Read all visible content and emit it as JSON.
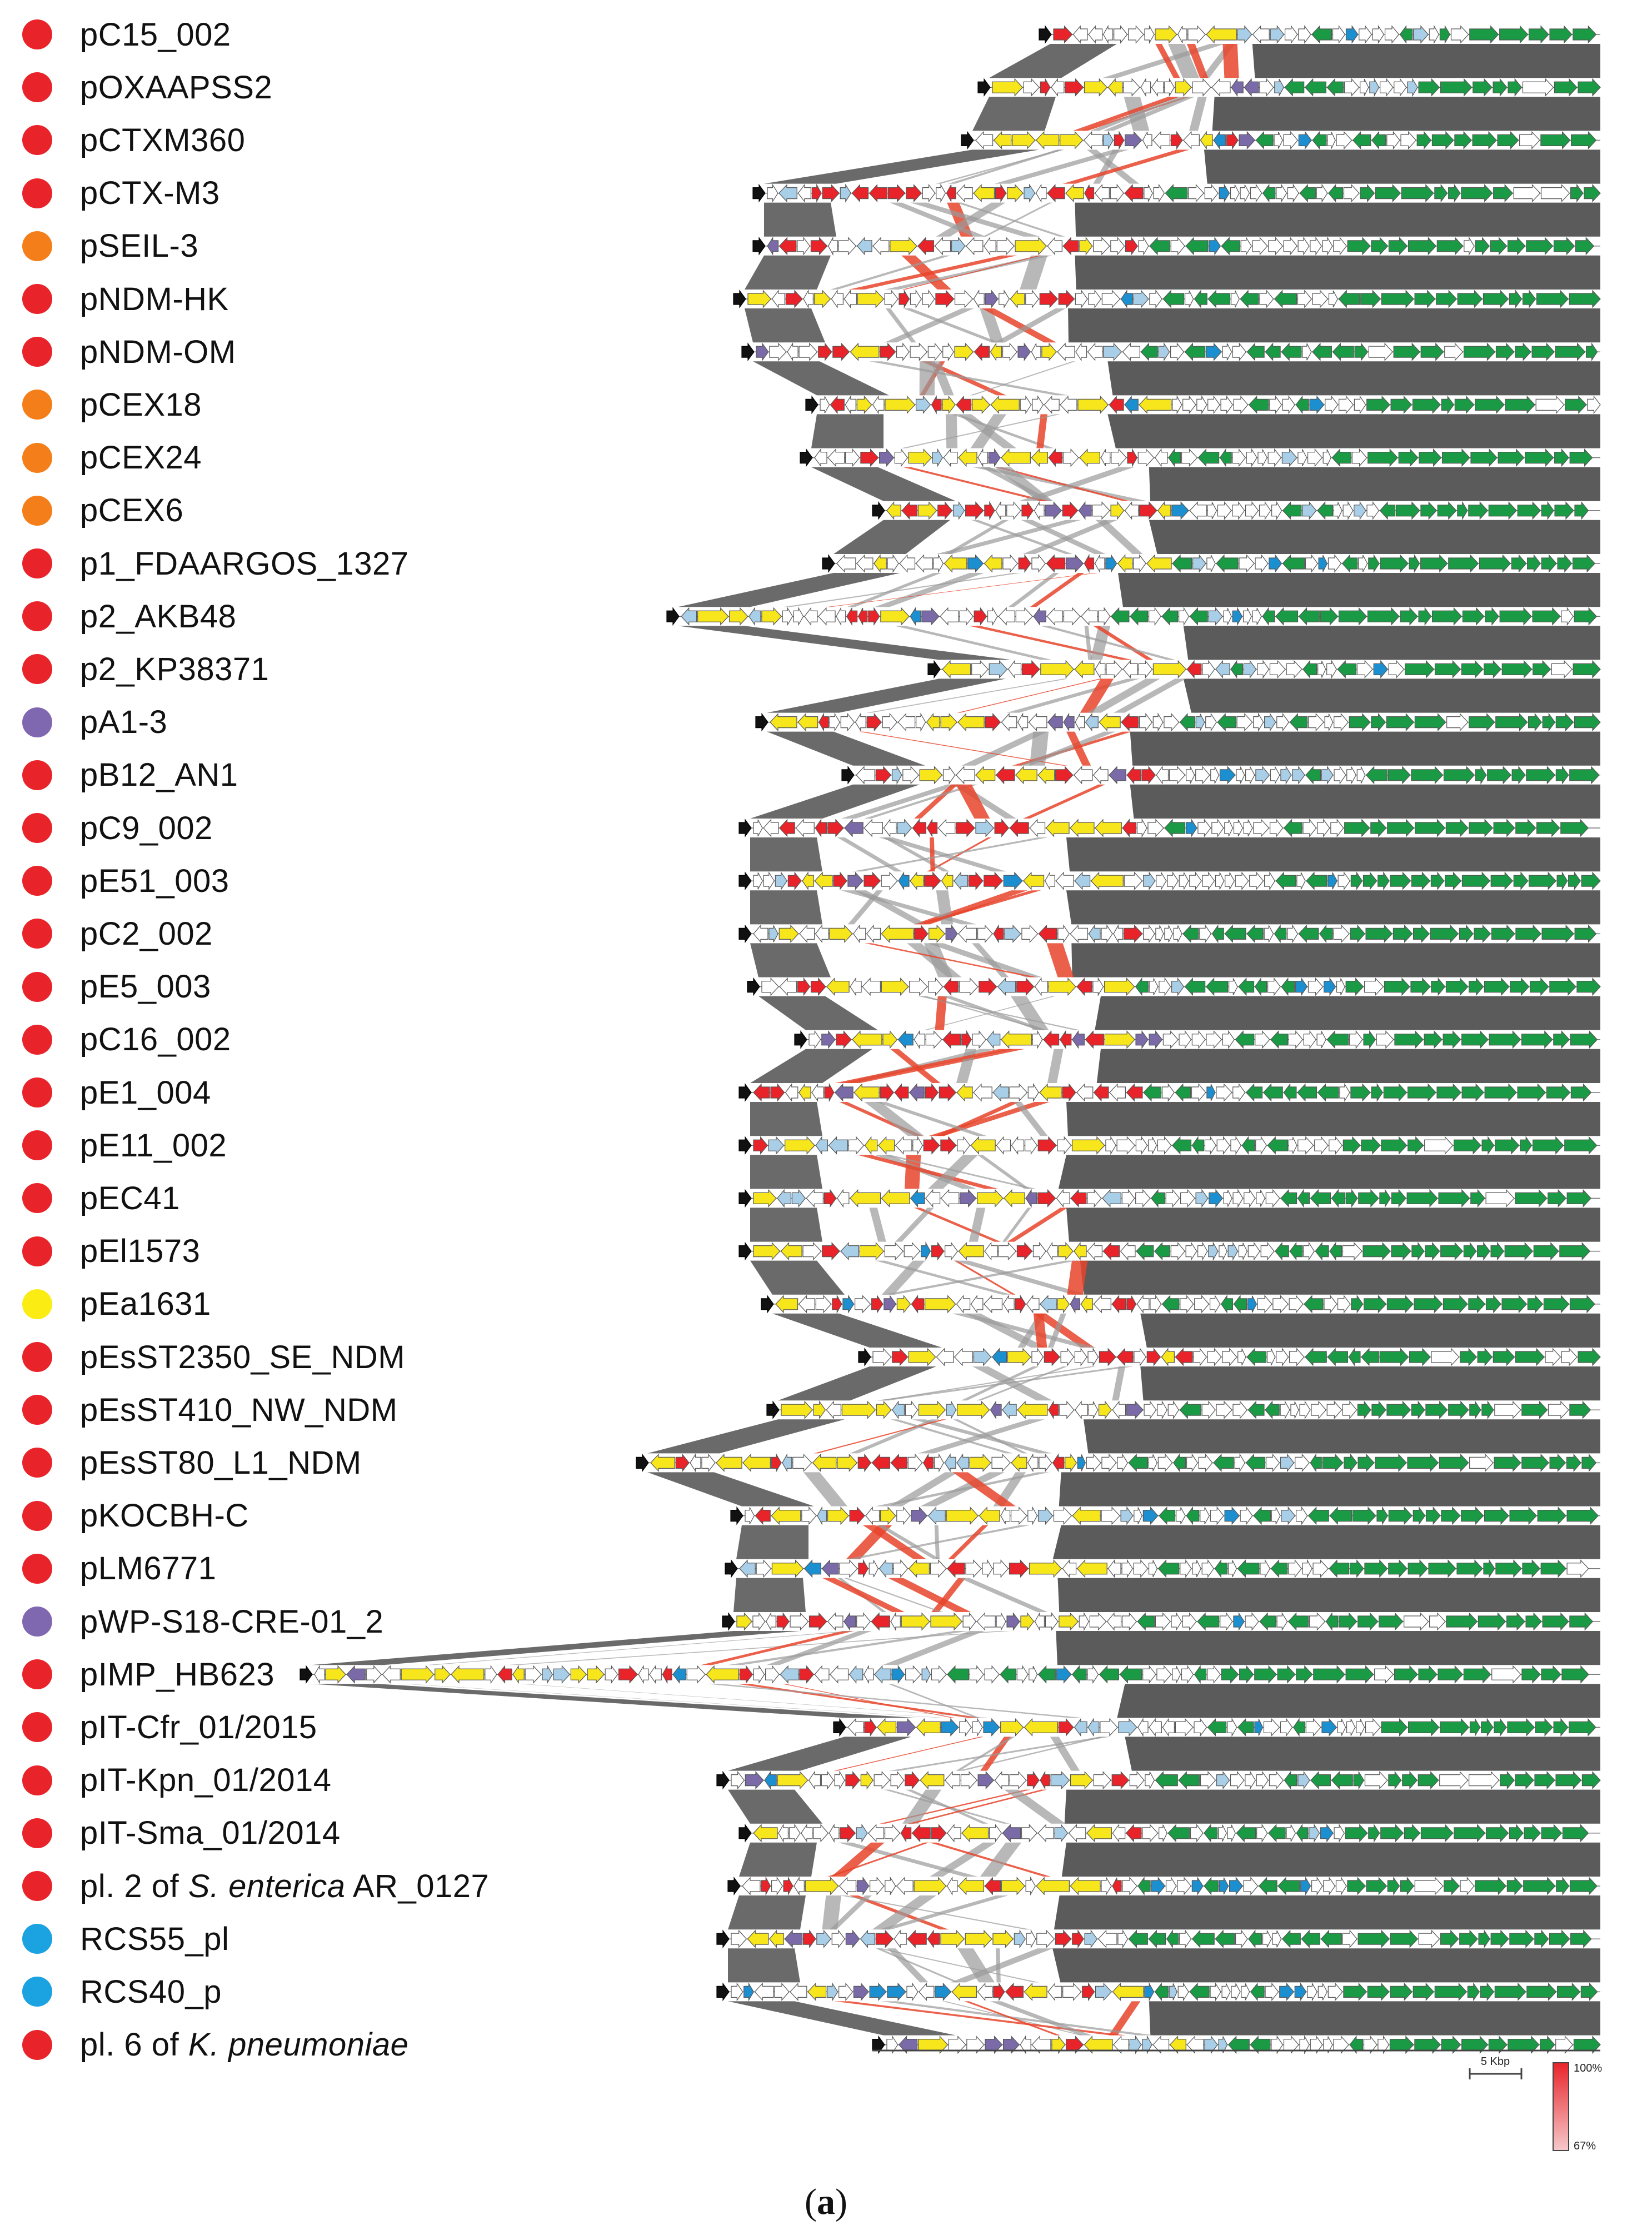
{
  "figure": {
    "caption_open": "(",
    "caption_letter": "a",
    "caption_close": ")"
  },
  "category_colors": {
    "red": "#e8242a",
    "orange": "#f47f1a",
    "purple": "#8068b0",
    "yellow": "#fbec14",
    "blue": "#1ba2e0"
  },
  "gene_colors": {
    "green": "#1a9a44",
    "yellow": "#f7e61c",
    "red": "#e8242a",
    "blue": "#1c8fd0",
    "lightblue": "#a9cfe8",
    "purple": "#7b6aa8",
    "grey": "#ffffff",
    "black": "#111111",
    "pink": "#f3a3a8"
  },
  "plasmids": [
    {
      "name": "pC15_002",
      "color": "red"
    },
    {
      "name": "pOXAAPSS2",
      "color": "red"
    },
    {
      "name": "pCTXM360",
      "color": "red"
    },
    {
      "name": "pCTX-M3",
      "color": "red"
    },
    {
      "name": "pSEIL-3",
      "color": "orange"
    },
    {
      "name": "pNDM-HK",
      "color": "red"
    },
    {
      "name": "pNDM-OM",
      "color": "red"
    },
    {
      "name": "pCEX18",
      "color": "orange"
    },
    {
      "name": "pCEX24",
      "color": "orange"
    },
    {
      "name": "pCEX6",
      "color": "orange"
    },
    {
      "name": "p1_FDAARGOS_1327",
      "color": "red"
    },
    {
      "name": "p2_AKB48",
      "color": "red"
    },
    {
      "name": "p2_KP38371",
      "color": "red"
    },
    {
      "name": "pA1-3",
      "color": "purple"
    },
    {
      "name": "pB12_AN1",
      "color": "red"
    },
    {
      "name": "pC9_002",
      "color": "red"
    },
    {
      "name": "pE51_003",
      "color": "red"
    },
    {
      "name": "pC2_002",
      "color": "red"
    },
    {
      "name": "pE5_003",
      "color": "red"
    },
    {
      "name": "pC16_002",
      "color": "red"
    },
    {
      "name": "pE1_004",
      "color": "red"
    },
    {
      "name": "pE11_002",
      "color": "red"
    },
    {
      "name": "pEC41",
      "color": "red"
    },
    {
      "name": "pEl1573",
      "color": "red"
    },
    {
      "name": "pEa1631",
      "color": "yellow"
    },
    {
      "name": "pEsST2350_SE_NDM",
      "color": "red"
    },
    {
      "name": "pEsST410_NW_NDM",
      "color": "red"
    },
    {
      "name": "pEsST80_L1_NDM",
      "color": "red"
    },
    {
      "name": "pKOCBH-C",
      "color": "red"
    },
    {
      "name": "pLM6771",
      "color": "red"
    },
    {
      "name": "pWP-S18-CRE-01_2",
      "color": "purple"
    },
    {
      "name": "pIMP_HB623",
      "color": "red"
    },
    {
      "name": "pIT-Cfr_01/2015",
      "color": "red"
    },
    {
      "name": "pIT-Kpn_01/2014",
      "color": "red"
    },
    {
      "name": "pIT-Sma_01/2014",
      "color": "red"
    },
    {
      "name": "pl. 2 of ",
      "italic": "S. enterica",
      "suffix": " AR_0127",
      "color": "red"
    },
    {
      "name": "RCS55_pl",
      "color": "blue"
    },
    {
      "name": "RCS40_p",
      "color": "blue"
    },
    {
      "name": "pl. 6 of ",
      "italic": "K. pneumoniae",
      "suffix": "",
      "color": "red"
    }
  ],
  "scale_bar": {
    "label": "5 Kbp"
  },
  "identity_legend": {
    "max_label": "100%",
    "min_label": "67%",
    "max_color": "#e8242a",
    "min_color": "#f6c9cb"
  }
}
